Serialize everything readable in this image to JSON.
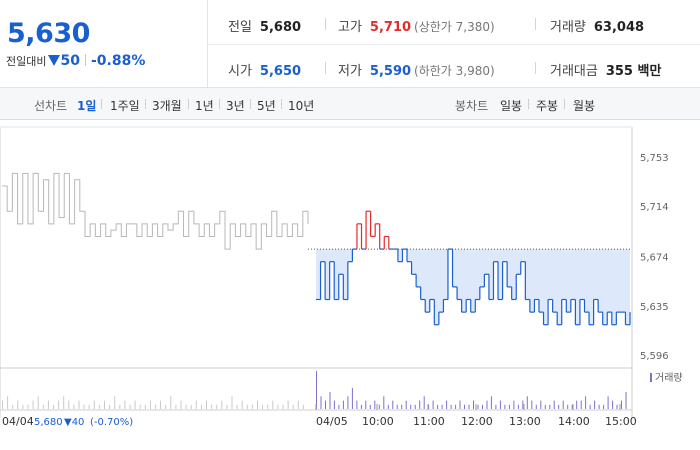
{
  "summary": {
    "price": "5,630",
    "change_label": "전일대비",
    "change_value": "50",
    "change_pct": "-0.88%"
  },
  "stats": {
    "prev_close": {
      "label": "전일",
      "value": "5,680"
    },
    "high": {
      "label": "고가",
      "value": "5,710",
      "sub": "(상한가 7,380)"
    },
    "volume": {
      "label": "거래량",
      "value": "63,048"
    },
    "open": {
      "label": "시가",
      "value": "5,650"
    },
    "low": {
      "label": "저가",
      "value": "5,590",
      "sub": "(하한가 3,980)"
    },
    "amount": {
      "label": "거래대금",
      "value": "355 백만"
    }
  },
  "tabs": {
    "line_label": "선차트",
    "line_periods": [
      "1일",
      "1주일",
      "3개월",
      "1년",
      "3년",
      "5년",
      "10년"
    ],
    "selected": "1일",
    "candle_label": "봉차트",
    "candle_periods": [
      "일봉",
      "주봉",
      "월봉"
    ]
  },
  "chart_data": {
    "type": "line",
    "y_ticks": [
      "5,753",
      "5,714",
      "5,674",
      "5,635",
      "5,596"
    ],
    "y_range": [
      5596,
      5753
    ],
    "reference_price": 5680,
    "x_labels": [
      "04/05",
      "10:00",
      "11:00",
      "12:00",
      "13:00",
      "14:00",
      "15:00"
    ],
    "volume_legend": "거래량",
    "prev_day": {
      "date": "04/04",
      "close": "5,680",
      "change": "▼40",
      "change_pct": "(-0.70%)",
      "prices": [
        5730,
        5710,
        5740,
        5700,
        5740,
        5700,
        5740,
        5710,
        5735,
        5700,
        5740,
        5705,
        5740,
        5700,
        5735,
        5710,
        5690,
        5700,
        5690,
        5700,
        5690,
        5695,
        5700,
        5690,
        5700,
        5700,
        5690,
        5700,
        5690,
        5700,
        5690,
        5700,
        5695,
        5700,
        5710,
        5690,
        5710,
        5700,
        5690,
        5700,
        5690,
        5700,
        5710,
        5680,
        5700,
        5690,
        5700,
        5690,
        5700,
        5680,
        5700,
        5690,
        5710,
        5690,
        5700,
        5690,
        5700,
        5690,
        5710,
        5700
      ]
    },
    "today": {
      "prices": [
        5640,
        5670,
        5640,
        5670,
        5640,
        5660,
        5640,
        5670,
        5680,
        5700,
        5680,
        5710,
        5690,
        5700,
        5680,
        5690,
        5680,
        5680,
        5670,
        5680,
        5670,
        5660,
        5650,
        5640,
        5630,
        5640,
        5620,
        5630,
        5640,
        5680,
        5650,
        5640,
        5630,
        5640,
        5630,
        5640,
        5650,
        5660,
        5640,
        5670,
        5640,
        5670,
        5650,
        5640,
        5660,
        5670,
        5640,
        5630,
        5640,
        5630,
        5620,
        5640,
        5630,
        5620,
        5640,
        5630,
        5640,
        5620,
        5640,
        5630,
        5620,
        5640,
        5630,
        5620,
        5630,
        5620,
        5630,
        5630,
        5620,
        5630
      ]
    },
    "volumes": [
      2,
      3,
      1,
      2,
      1,
      1,
      2,
      3,
      1,
      2,
      1,
      2,
      3,
      2,
      1,
      2,
      1,
      1,
      2,
      1,
      2,
      1,
      3,
      1,
      2,
      1,
      2,
      1,
      1,
      2,
      1,
      2,
      1,
      3,
      1,
      2,
      1,
      1,
      2,
      1,
      2,
      1,
      1,
      2,
      1,
      3,
      1,
      2,
      1,
      1,
      2,
      1,
      1,
      2,
      1,
      1,
      2,
      1,
      2,
      1,
      9,
      3,
      2,
      4,
      2,
      1,
      2,
      3,
      5,
      2,
      1,
      2,
      1,
      2,
      1,
      3,
      1,
      2,
      1,
      1,
      2,
      1,
      1,
      2,
      3,
      1,
      2,
      1,
      1,
      2,
      1,
      1,
      2,
      1,
      1,
      2,
      1,
      1,
      2,
      3,
      1,
      2,
      1,
      1,
      2,
      1,
      2,
      3,
      2,
      1,
      2,
      1,
      1,
      2,
      1,
      2,
      1,
      1,
      2,
      2,
      3,
      1,
      2,
      1,
      1,
      3,
      2,
      1,
      2,
      4
    ]
  }
}
